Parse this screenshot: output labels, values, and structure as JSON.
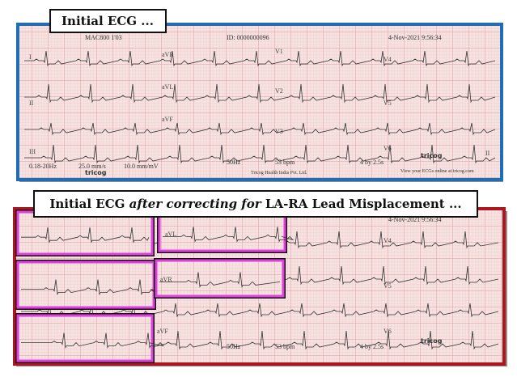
{
  "top_panel": {
    "title": "Initial ECG ...",
    "header": {
      "id": "ID: 0000000096",
      "date": "4-Nov-2021  9:56:34",
      "device": "MAC800 1'03"
    },
    "leads": [
      "I",
      "aVR",
      "V1",
      "V4",
      "II",
      "aVL",
      "V2",
      "V5",
      "III",
      "aVF",
      "V3",
      "V6",
      "II"
    ],
    "footer": [
      "0.18-20Hz",
      "25.0 mm/s",
      "10.0 mm/mV",
      "50Hz",
      "53 bpm",
      "4 by 2.5s"
    ],
    "brand": "tricog",
    "company": "Tricog Health India Pvt. Ltd.",
    "website": "View your ECGs online at tricog.com"
  },
  "bottom_panel": {
    "title": {
      "before": "Initial ECG ",
      "emphasis": "after correcting for",
      "after": " LA-RA Lead Misplacement ..."
    },
    "leads": [
      "aVL",
      "aVR",
      "aVF",
      "V4",
      "V5",
      "V6"
    ],
    "footer": [
      "50Hz",
      "53 bpm",
      "4 by 2.5s"
    ],
    "brand": "tricog",
    "date": "4-Nov-2021  9:56:34"
  }
}
